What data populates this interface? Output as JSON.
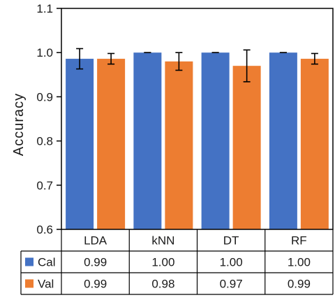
{
  "chart_data": {
    "type": "bar",
    "title": "",
    "xlabel": "",
    "ylabel": "Accuracy",
    "ylim": [
      0.6,
      1.1
    ],
    "yticks": [
      "0.6",
      "0.7",
      "0.8",
      "0.9",
      "1.0",
      "1.1"
    ],
    "grid": false,
    "legend": "data-table",
    "categories": [
      "LDA",
      "kNN",
      "DT",
      "RF"
    ],
    "series": [
      {
        "name": "Cal",
        "color": "#4472C4",
        "values": [
          0.986,
          1.0,
          1.0,
          1.0
        ],
        "error": [
          0.023,
          0.0,
          0.0,
          0.0
        ],
        "table_values": [
          "0.99",
          "1.00",
          "1.00",
          "1.00"
        ]
      },
      {
        "name": "Val",
        "color": "#ED7D31",
        "values": [
          0.986,
          0.98,
          0.97,
          0.986
        ],
        "error": [
          0.012,
          0.02,
          0.036,
          0.012
        ],
        "table_values": [
          "0.99",
          "0.98",
          "0.97",
          "0.99"
        ]
      }
    ]
  }
}
